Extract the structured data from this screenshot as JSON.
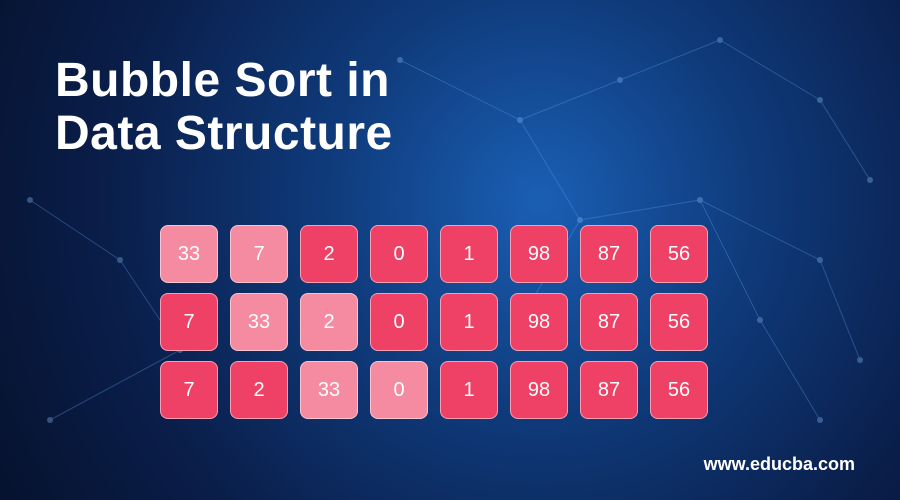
{
  "title_line1": "Bubble Sort in",
  "title_line2": "Data Structure",
  "website": "www.educba.com",
  "colors": {
    "cell_normal": "#ef4165",
    "cell_highlight": "#f48ba0",
    "cell_text": "#ffffff"
  },
  "cell_size": 58,
  "cell_radius": 8,
  "cell_gap": 12,
  "row_gap": 10,
  "arrays": [
    {
      "values": [
        "33",
        "7",
        "2",
        "0",
        "1",
        "98",
        "87",
        "56"
      ],
      "highlighted": [
        0,
        1
      ]
    },
    {
      "values": [
        "7",
        "33",
        "2",
        "0",
        "1",
        "98",
        "87",
        "56"
      ],
      "highlighted": [
        1,
        2
      ]
    },
    {
      "values": [
        "7",
        "2",
        "33",
        "0",
        "1",
        "98",
        "87",
        "56"
      ],
      "highlighted": [
        2,
        3
      ]
    }
  ]
}
